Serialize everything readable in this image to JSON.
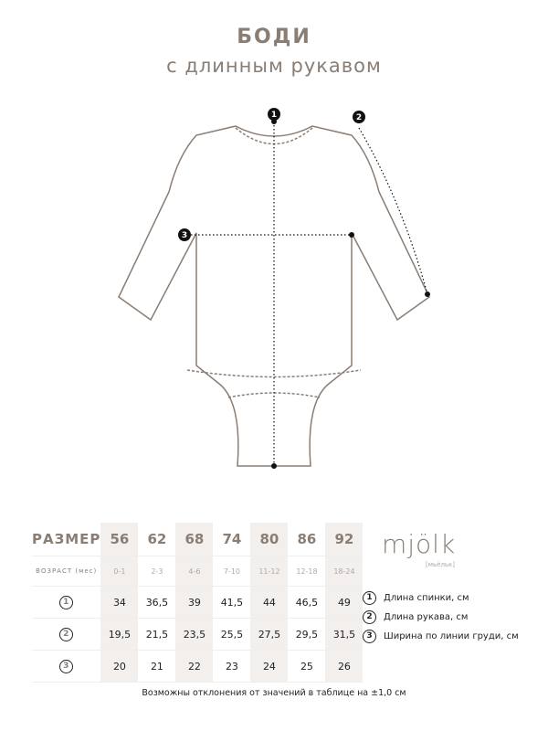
{
  "title": "БОДИ",
  "subtitle": "с длинным рукавом",
  "markers": [
    "1",
    "2",
    "3"
  ],
  "table": {
    "size_label": "РАЗМЕР",
    "age_label": "ВОЗРАСТ (мес)",
    "sizes": [
      "56",
      "62",
      "68",
      "74",
      "80",
      "86",
      "92"
    ],
    "ages": [
      "0-1",
      "2-3",
      "4-6",
      "7-10",
      "11-12",
      "12-18",
      "18-24"
    ],
    "rows": [
      {
        "marker": "1",
        "values": [
          "34",
          "36,5",
          "39",
          "41,5",
          "44",
          "46,5",
          "49"
        ]
      },
      {
        "marker": "2",
        "values": [
          "19,5",
          "21,5",
          "23,5",
          "25,5",
          "27,5",
          "29,5",
          "31,5"
        ]
      },
      {
        "marker": "3",
        "values": [
          "20",
          "21",
          "22",
          "23",
          "24",
          "25",
          "26"
        ]
      }
    ]
  },
  "logo": {
    "name": "mjölk",
    "sub": "[мьёльк]"
  },
  "legend": [
    {
      "marker": "1",
      "text": "Длина спинки, см"
    },
    {
      "marker": "2",
      "text": "Длина рукава, см"
    },
    {
      "marker": "3",
      "text": "Ширина по линии груди, см"
    }
  ],
  "note": "Возможны отклонения от значений в таблице на ±1,0 см",
  "colors": {
    "accent": "#8a7d74",
    "shade": "#f3efec"
  }
}
